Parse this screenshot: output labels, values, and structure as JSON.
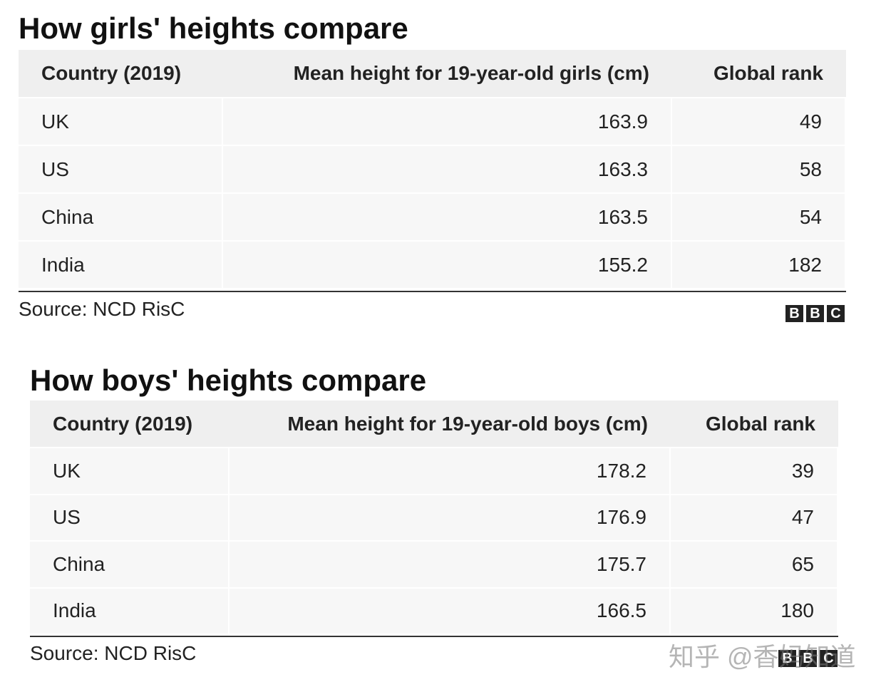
{
  "tables": [
    {
      "title": "How girls' heights compare",
      "columns": [
        "Country (2019)",
        "Mean height for 19-year-old girls (cm)",
        "Global rank"
      ],
      "rows": [
        [
          "UK",
          "163.9",
          "49"
        ],
        [
          "US",
          "163.3",
          "58"
        ],
        [
          "China",
          "163.5",
          "54"
        ],
        [
          "India",
          "155.2",
          "182"
        ]
      ],
      "source": "Source: NCD RisC",
      "logo": [
        "B",
        "B",
        "C"
      ]
    },
    {
      "title": "How boys' heights compare",
      "columns": [
        "Country (2019)",
        "Mean height for 19-year-old boys (cm)",
        "Global rank"
      ],
      "rows": [
        [
          "UK",
          "178.2",
          "39"
        ],
        [
          "US",
          "176.9",
          "47"
        ],
        [
          "China",
          "175.7",
          "65"
        ],
        [
          "India",
          "166.5",
          "180"
        ]
      ],
      "source": "Source: NCD RisC",
      "logo": [
        "B",
        "B",
        "C"
      ]
    }
  ],
  "watermark": "知乎 @香妈知道"
}
